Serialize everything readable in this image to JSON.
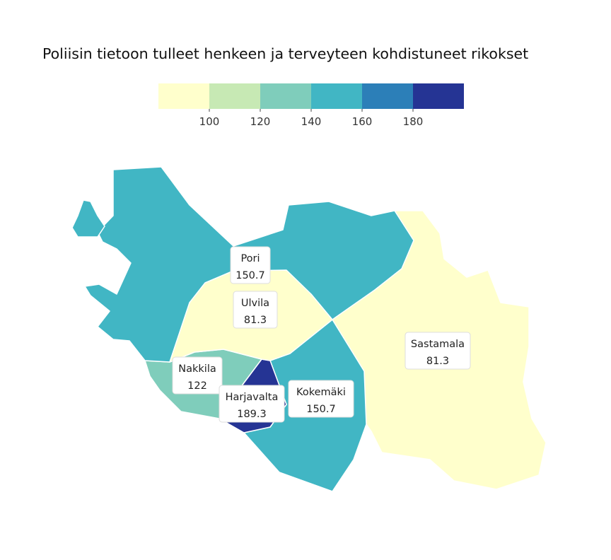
{
  "title": "Poliisin tietoon tulleet henkeen ja terveyteen kohdistuneet rikokset",
  "legend": {
    "colors": [
      "#ffffcc",
      "#c7e9b4",
      "#7fcdbb",
      "#41b6c4",
      "#2c7fb8",
      "#253494"
    ],
    "ticks": [
      "100",
      "120",
      "140",
      "160",
      "180"
    ]
  },
  "regions": [
    {
      "name": "Pori",
      "value": "150.7",
      "color": "#41b6c4"
    },
    {
      "name": "Ulvila",
      "value": "81.3",
      "color": "#ffffcc"
    },
    {
      "name": "Nakkila",
      "value": "122",
      "color": "#7fcdbb"
    },
    {
      "name": "Harjavalta",
      "value": "189.3",
      "color": "#253494"
    },
    {
      "name": "Kokemäki",
      "value": "150.7",
      "color": "#41b6c4"
    },
    {
      "name": "Sastamala",
      "value": "81.3",
      "color": "#ffffcc"
    }
  ]
}
